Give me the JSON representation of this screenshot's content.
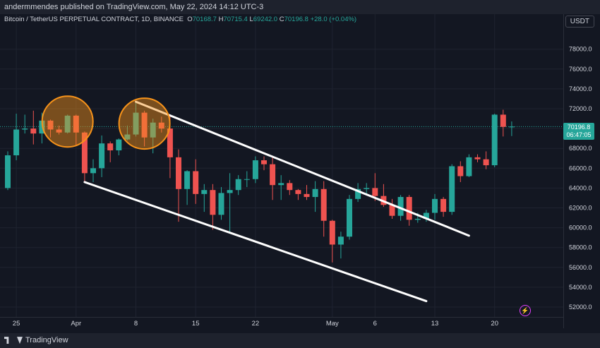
{
  "header": {
    "publisher_text": "andermmendes published on TradingView.com, May 22, 2024 14:12 UTC-3"
  },
  "legend": {
    "symbol": "Bitcoin / TetherUS PERPETUAL CONTRACT, 1D, BINANCE",
    "o_label": "O",
    "o": "70168.7",
    "h_label": "H",
    "h": "70715.4",
    "l_label": "L",
    "l": "69242.0",
    "c_label": "C",
    "c": "70196.8",
    "change": "+28.0 (+0.04%)"
  },
  "currency_button": "USDT",
  "price_badge": {
    "price": "70196.8",
    "countdown": "06:47:05"
  },
  "footer": {
    "brand": "TradingView"
  },
  "colors": {
    "up": "#26a69a",
    "down": "#ef5350",
    "background": "#131722",
    "circle": "#f7931a",
    "lines": "#ffffff"
  },
  "chart_data": {
    "type": "candlestick",
    "ylim": [
      51000,
      80500
    ],
    "yticks": [
      "52000.0",
      "54000.0",
      "56000.0",
      "58000.0",
      "60000.0",
      "62000.0",
      "64000.0",
      "66000.0",
      "68000.0",
      "70000.0",
      "72000.0",
      "74000.0",
      "76000.0",
      "78000.0"
    ],
    "xticks": [
      {
        "label": "25",
        "date": "2024-03-25"
      },
      {
        "label": "Apr",
        "date": "2024-04-01"
      },
      {
        "label": "8",
        "date": "2024-04-08"
      },
      {
        "label": "15",
        "date": "2024-04-15"
      },
      {
        "label": "22",
        "date": "2024-04-22"
      },
      {
        "label": "May",
        "date": "2024-05-01"
      },
      {
        "label": "6",
        "date": "2024-05-06"
      },
      {
        "label": "13",
        "date": "2024-05-13"
      },
      {
        "label": "20",
        "date": "2024-05-20"
      }
    ],
    "candles": [
      {
        "date": "2024-03-24",
        "o": 64000,
        "h": 67700,
        "l": 63800,
        "c": 67300
      },
      {
        "date": "2024-03-25",
        "o": 67300,
        "h": 71500,
        "l": 66800,
        "c": 69900
      },
      {
        "date": "2024-03-26",
        "o": 69900,
        "h": 71400,
        "l": 69500,
        "c": 70000
      },
      {
        "date": "2024-03-27",
        "o": 70000,
        "h": 71800,
        "l": 68400,
        "c": 69500
      },
      {
        "date": "2024-03-28",
        "o": 69500,
        "h": 71600,
        "l": 68500,
        "c": 70800
      },
      {
        "date": "2024-03-29",
        "o": 70800,
        "h": 70900,
        "l": 69100,
        "c": 69900
      },
      {
        "date": "2024-03-30",
        "o": 69900,
        "h": 70300,
        "l": 69400,
        "c": 69600
      },
      {
        "date": "2024-03-31",
        "o": 69600,
        "h": 71400,
        "l": 69500,
        "c": 71300
      },
      {
        "date": "2024-04-01",
        "o": 71300,
        "h": 71400,
        "l": 68300,
        "c": 69600
      },
      {
        "date": "2024-04-02",
        "o": 69600,
        "h": 69700,
        "l": 64600,
        "c": 65500
      },
      {
        "date": "2024-04-03",
        "o": 65500,
        "h": 66900,
        "l": 64600,
        "c": 66000
      },
      {
        "date": "2024-04-04",
        "o": 66000,
        "h": 69300,
        "l": 65100,
        "c": 68500
      },
      {
        "date": "2024-04-05",
        "o": 68500,
        "h": 68700,
        "l": 66600,
        "c": 67800
      },
      {
        "date": "2024-04-06",
        "o": 67800,
        "h": 69000,
        "l": 67300,
        "c": 68900
      },
      {
        "date": "2024-04-07",
        "o": 68900,
        "h": 70300,
        "l": 68800,
        "c": 69400
      },
      {
        "date": "2024-04-08",
        "o": 69400,
        "h": 72700,
        "l": 69200,
        "c": 71600
      },
      {
        "date": "2024-04-09",
        "o": 71600,
        "h": 71800,
        "l": 68200,
        "c": 69100
      },
      {
        "date": "2024-04-10",
        "o": 69100,
        "h": 71000,
        "l": 67500,
        "c": 70600
      },
      {
        "date": "2024-04-11",
        "o": 70600,
        "h": 71200,
        "l": 69600,
        "c": 70000
      },
      {
        "date": "2024-04-12",
        "o": 70000,
        "h": 71200,
        "l": 65000,
        "c": 67100
      },
      {
        "date": "2024-04-13",
        "o": 67100,
        "h": 67900,
        "l": 60600,
        "c": 63900
      },
      {
        "date": "2024-04-14",
        "o": 63900,
        "h": 65800,
        "l": 62300,
        "c": 65700
      },
      {
        "date": "2024-04-15",
        "o": 65700,
        "h": 66900,
        "l": 62400,
        "c": 63400
      },
      {
        "date": "2024-04-16",
        "o": 63400,
        "h": 64400,
        "l": 61600,
        "c": 63800
      },
      {
        "date": "2024-04-17",
        "o": 63800,
        "h": 64400,
        "l": 59800,
        "c": 61300
      },
      {
        "date": "2024-04-18",
        "o": 61300,
        "h": 64100,
        "l": 60800,
        "c": 63500
      },
      {
        "date": "2024-04-19",
        "o": 63500,
        "h": 65500,
        "l": 59600,
        "c": 63800
      },
      {
        "date": "2024-04-20",
        "o": 63800,
        "h": 65300,
        "l": 63300,
        "c": 64900
      },
      {
        "date": "2024-04-21",
        "o": 64900,
        "h": 65700,
        "l": 64100,
        "c": 64900
      },
      {
        "date": "2024-04-22",
        "o": 64900,
        "h": 67200,
        "l": 64500,
        "c": 66800
      },
      {
        "date": "2024-04-23",
        "o": 66800,
        "h": 67200,
        "l": 65800,
        "c": 66400
      },
      {
        "date": "2024-04-24",
        "o": 66400,
        "h": 67100,
        "l": 62800,
        "c": 64300
      },
      {
        "date": "2024-04-25",
        "o": 64300,
        "h": 65300,
        "l": 62800,
        "c": 64500
      },
      {
        "date": "2024-04-26",
        "o": 64500,
        "h": 64800,
        "l": 63300,
        "c": 63800
      },
      {
        "date": "2024-04-27",
        "o": 63800,
        "h": 63900,
        "l": 62800,
        "c": 63400
      },
      {
        "date": "2024-04-28",
        "o": 63400,
        "h": 64300,
        "l": 62800,
        "c": 63100
      },
      {
        "date": "2024-04-29",
        "o": 63100,
        "h": 64700,
        "l": 61600,
        "c": 63900
      },
      {
        "date": "2024-04-30",
        "o": 63900,
        "h": 64700,
        "l": 59100,
        "c": 60700
      },
      {
        "date": "2024-05-01",
        "o": 60700,
        "h": 60800,
        "l": 56500,
        "c": 58300
      },
      {
        "date": "2024-05-02",
        "o": 58300,
        "h": 59600,
        "l": 56900,
        "c": 59100
      },
      {
        "date": "2024-05-03",
        "o": 59100,
        "h": 63300,
        "l": 58800,
        "c": 62900
      },
      {
        "date": "2024-05-04",
        "o": 62900,
        "h": 64500,
        "l": 62600,
        "c": 63900
      },
      {
        "date": "2024-05-05",
        "o": 63900,
        "h": 64500,
        "l": 63400,
        "c": 64000
      },
      {
        "date": "2024-05-06",
        "o": 64000,
        "h": 65500,
        "l": 62700,
        "c": 63200
      },
      {
        "date": "2024-05-07",
        "o": 63200,
        "h": 64400,
        "l": 62100,
        "c": 62300
      },
      {
        "date": "2024-05-08",
        "o": 62300,
        "h": 62900,
        "l": 60900,
        "c": 61200
      },
      {
        "date": "2024-05-09",
        "o": 61200,
        "h": 63300,
        "l": 60700,
        "c": 63100
      },
      {
        "date": "2024-05-10",
        "o": 63100,
        "h": 63300,
        "l": 60200,
        "c": 60800
      },
      {
        "date": "2024-05-11",
        "o": 60800,
        "h": 61500,
        "l": 60500,
        "c": 60900
      },
      {
        "date": "2024-05-12",
        "o": 60900,
        "h": 61800,
        "l": 60600,
        "c": 61500
      },
      {
        "date": "2024-05-13",
        "o": 61500,
        "h": 63400,
        "l": 60800,
        "c": 62900
      },
      {
        "date": "2024-05-14",
        "o": 62900,
        "h": 63100,
        "l": 61100,
        "c": 61600
      },
      {
        "date": "2024-05-15",
        "o": 61600,
        "h": 66400,
        "l": 61300,
        "c": 66200
      },
      {
        "date": "2024-05-16",
        "o": 66200,
        "h": 66700,
        "l": 64600,
        "c": 65200
      },
      {
        "date": "2024-05-17",
        "o": 65200,
        "h": 67400,
        "l": 65100,
        "c": 67100
      },
      {
        "date": "2024-05-18",
        "o": 67100,
        "h": 67400,
        "l": 66600,
        "c": 66900
      },
      {
        "date": "2024-05-19",
        "o": 66900,
        "h": 67700,
        "l": 65900,
        "c": 66300
      },
      {
        "date": "2024-05-20",
        "o": 66300,
        "h": 71500,
        "l": 66100,
        "c": 71400
      },
      {
        "date": "2024-05-21",
        "o": 71400,
        "h": 71900,
        "l": 69200,
        "c": 70168.7
      },
      {
        "date": "2024-05-22",
        "o": 70168.7,
        "h": 70715.4,
        "l": 69242.0,
        "c": 70196.8
      }
    ],
    "trendlines": [
      {
        "name": "upper channel",
        "start": {
          "date": "2024-04-08",
          "price": 72700
        },
        "end": {
          "date": "2024-05-17",
          "price": 59200
        }
      },
      {
        "name": "lower channel",
        "start": {
          "date": "2024-04-02",
          "price": 64600
        },
        "end": {
          "date": "2024-05-12",
          "price": 52600
        }
      }
    ],
    "highlight_circles": [
      {
        "date": "2024-03-31",
        "price": 70700
      },
      {
        "date": "2024-04-09",
        "price": 70500
      }
    ],
    "current_price_line": 70196.8
  }
}
